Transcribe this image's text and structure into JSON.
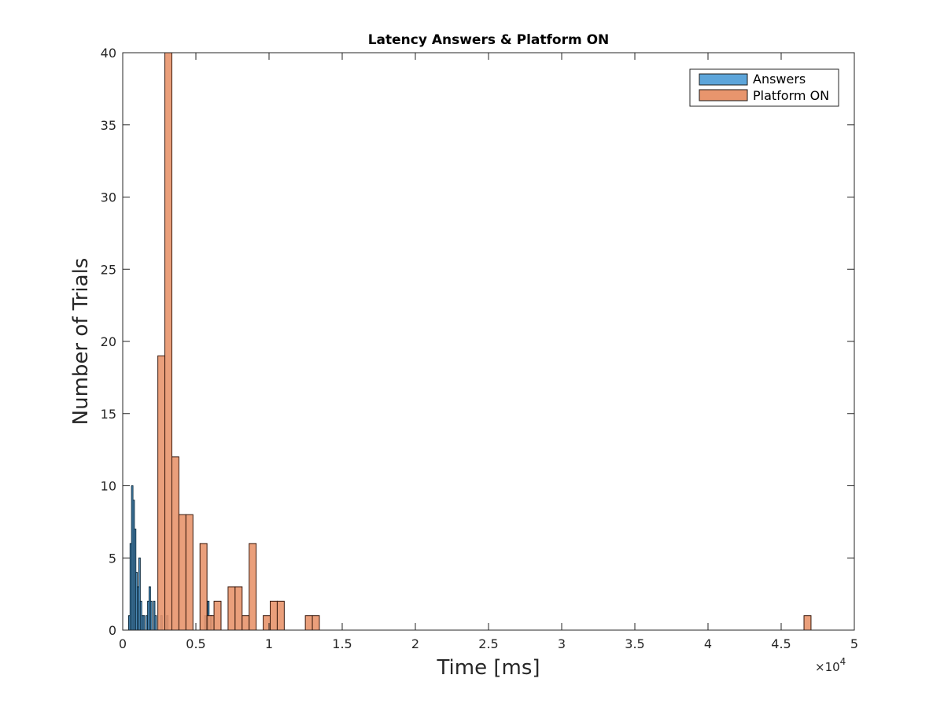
{
  "chart_data": {
    "type": "bar",
    "title": "Latency Answers & Platform ON",
    "xlabel": "Time [ms]",
    "ylabel": "Number of Trials",
    "x_multiplier_label": "×10",
    "x_multiplier_exponent": "4",
    "xlim": [
      0,
      50000
    ],
    "ylim": [
      0,
      40
    ],
    "xticks": [
      0,
      5000,
      10000,
      15000,
      20000,
      25000,
      30000,
      35000,
      40000,
      45000,
      50000
    ],
    "xtick_labels": [
      "0",
      "0.5",
      "1",
      "1.5",
      "2",
      "2.5",
      "3",
      "3.5",
      "4",
      "4.5",
      "5"
    ],
    "yticks": [
      0,
      5,
      10,
      15,
      20,
      25,
      30,
      35,
      40
    ],
    "ytick_labels": [
      "0",
      "5",
      "10",
      "15",
      "20",
      "25",
      "30",
      "35",
      "40"
    ],
    "grid": false,
    "legend_position": "top-right",
    "series": [
      {
        "name": "Answers",
        "color": "#5DA5DA",
        "edge_color": "#0d2a3d",
        "bin_width": 100,
        "bins": [
          {
            "x": 400,
            "value": 1
          },
          {
            "x": 500,
            "value": 6
          },
          {
            "x": 600,
            "value": 10
          },
          {
            "x": 700,
            "value": 9
          },
          {
            "x": 800,
            "value": 7
          },
          {
            "x": 900,
            "value": 4
          },
          {
            "x": 1000,
            "value": 3
          },
          {
            "x": 1100,
            "value": 5
          },
          {
            "x": 1200,
            "value": 2
          },
          {
            "x": 1300,
            "value": 1
          },
          {
            "x": 1400,
            "value": 1
          },
          {
            "x": 1600,
            "value": 1
          },
          {
            "x": 1700,
            "value": 2
          },
          {
            "x": 1800,
            "value": 3
          },
          {
            "x": 1900,
            "value": 2
          },
          {
            "x": 2100,
            "value": 2
          },
          {
            "x": 2200,
            "value": 1
          },
          {
            "x": 2600,
            "value": 1
          },
          {
            "x": 3000,
            "value": 1
          },
          {
            "x": 5600,
            "value": 1
          },
          {
            "x": 5800,
            "value": 2
          },
          {
            "x": 6000,
            "value": 1
          }
        ]
      },
      {
        "name": "Platform ON",
        "color": "#E8956D",
        "edge_color": "#3a1a0e",
        "bin_width": 480,
        "bins": [
          {
            "x": 2400,
            "value": 19
          },
          {
            "x": 2880,
            "value": 40
          },
          {
            "x": 3360,
            "value": 12
          },
          {
            "x": 3840,
            "value": 8
          },
          {
            "x": 4320,
            "value": 8
          },
          {
            "x": 5280,
            "value": 6
          },
          {
            "x": 5760,
            "value": 1
          },
          {
            "x": 6240,
            "value": 2
          },
          {
            "x": 7200,
            "value": 3
          },
          {
            "x": 7680,
            "value": 3
          },
          {
            "x": 8160,
            "value": 1
          },
          {
            "x": 8640,
            "value": 6
          },
          {
            "x": 9600,
            "value": 1
          },
          {
            "x": 10080,
            "value": 2
          },
          {
            "x": 10560,
            "value": 2
          },
          {
            "x": 12480,
            "value": 1
          },
          {
            "x": 12960,
            "value": 1
          },
          {
            "x": 46560,
            "value": 1
          }
        ]
      }
    ]
  }
}
